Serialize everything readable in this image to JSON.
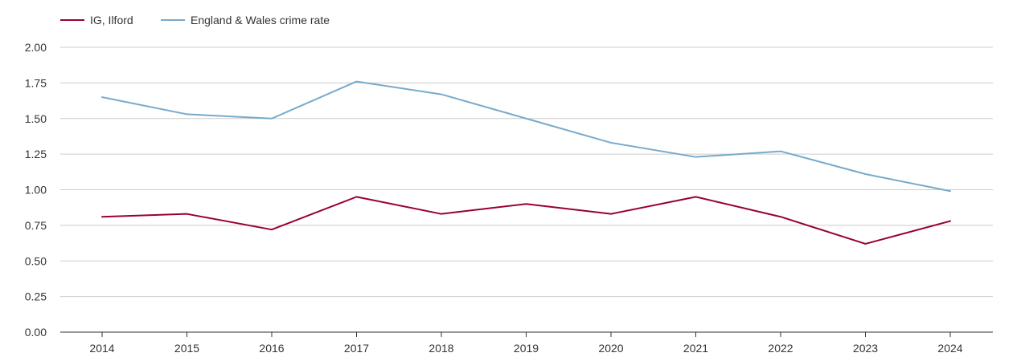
{
  "chart_data": {
    "type": "line",
    "title": "",
    "xlabel": "",
    "ylabel": "",
    "categories": [
      "2014",
      "2015",
      "2016",
      "2017",
      "2018",
      "2019",
      "2020",
      "2021",
      "2022",
      "2023",
      "2024"
    ],
    "series": [
      {
        "name": "IG, Ilford",
        "color": "#990033",
        "values": [
          0.81,
          0.83,
          0.72,
          0.95,
          0.83,
          0.9,
          0.83,
          0.95,
          0.81,
          0.62,
          0.78
        ]
      },
      {
        "name": "England & Wales crime rate",
        "color": "#77aacc",
        "values": [
          1.65,
          1.53,
          1.5,
          1.76,
          1.67,
          1.5,
          1.33,
          1.23,
          1.27,
          1.11,
          0.99
        ]
      }
    ],
    "ylim": [
      0,
      2
    ],
    "yticks": [
      "0.00",
      "0.25",
      "0.50",
      "0.75",
      "1.00",
      "1.25",
      "1.50",
      "1.75",
      "2.00"
    ],
    "grid": true,
    "legend_position": "top-left"
  }
}
